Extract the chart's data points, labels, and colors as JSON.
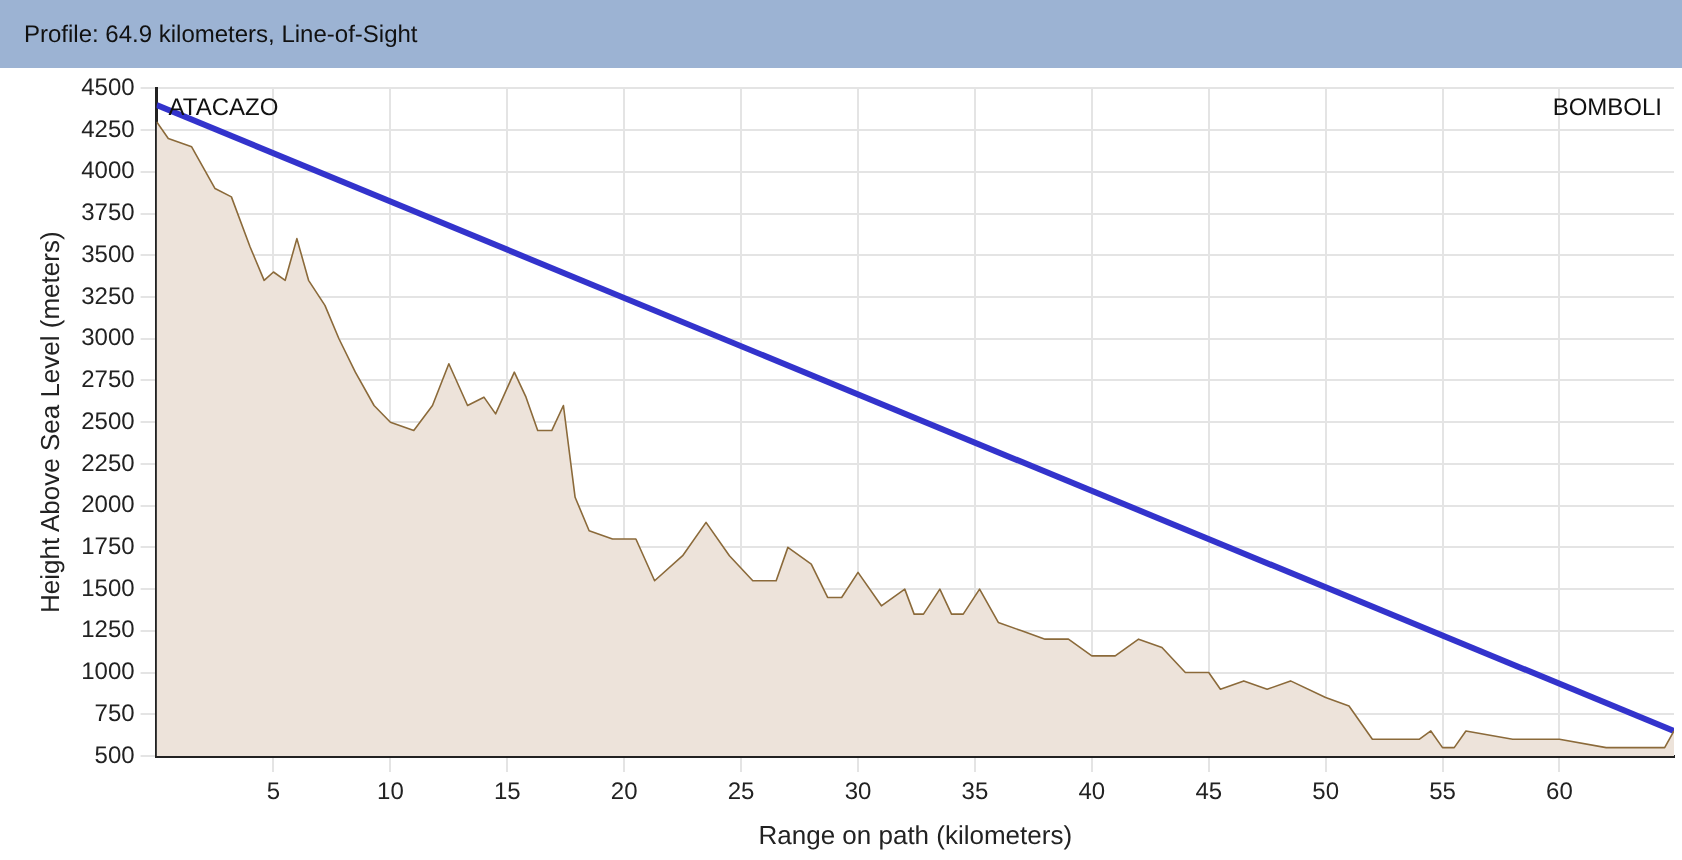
{
  "chart_data": {
    "type": "area",
    "title": "Profile: 64.9 kilometers, Line-of-Sight",
    "xlabel": "Range on path (kilometers)",
    "ylabel": "Height Above Sea Level (meters)",
    "xlim": [
      0,
      64.9
    ],
    "xticks": [
      5,
      10,
      15,
      20,
      25,
      30,
      35,
      40,
      45,
      50,
      55,
      60
    ],
    "ylim": [
      500,
      4500
    ],
    "yticks": [
      500,
      750,
      1000,
      1250,
      1500,
      1750,
      2000,
      2250,
      2500,
      2750,
      3000,
      3250,
      3500,
      3750,
      4000,
      4250,
      4500
    ],
    "grid": true,
    "legend": false,
    "annotations": [
      "ATACAZO",
      "BOMBOLI"
    ],
    "series": [
      {
        "color": "#8b6a3a",
        "x": [
          0,
          0.5,
          1.5,
          2.5,
          3.2,
          4,
          4.6,
          5,
          5.5,
          6,
          6.5,
          7.2,
          7.8,
          8.5,
          9.3,
          10,
          11,
          11.8,
          12.5,
          13.3,
          14,
          14.5,
          15.3,
          15.8,
          16.3,
          16.9,
          17.4,
          17.9,
          18.5,
          19.5,
          20.5,
          21.3,
          22.5,
          23.5,
          24.5,
          25.5,
          26.5,
          27,
          28,
          28.7,
          29.3,
          30,
          31,
          32,
          32.4,
          32.8,
          33.5,
          34,
          34.5,
          35.2,
          36,
          37,
          38,
          39,
          40,
          41,
          42,
          43,
          44,
          45,
          45.5,
          46.5,
          47.5,
          48.5,
          50,
          51,
          52,
          54,
          54.5,
          55,
          55.5,
          56,
          58,
          60,
          62,
          64.5,
          64.9
        ],
        "values": [
          4300,
          4200,
          4150,
          3900,
          3850,
          3550,
          3350,
          3400,
          3350,
          3600,
          3350,
          3200,
          3000,
          2800,
          2600,
          2500,
          2450,
          2600,
          2850,
          2600,
          2650,
          2550,
          2800,
          2650,
          2450,
          2450,
          2600,
          2050,
          1850,
          1800,
          1800,
          1550,
          1700,
          1900,
          1700,
          1550,
          1550,
          1750,
          1650,
          1450,
          1450,
          1600,
          1400,
          1500,
          1350,
          1350,
          1500,
          1350,
          1350,
          1500,
          1300,
          1250,
          1200,
          1200,
          1100,
          1100,
          1200,
          1150,
          1000,
          1000,
          900,
          950,
          900,
          950,
          850,
          800,
          600,
          600,
          650,
          550,
          550,
          650,
          600,
          600,
          550,
          550,
          650
        ]
      },
      {
        "type": "line",
        "color": "#3333cc",
        "x": [
          0,
          64.9
        ],
        "values": [
          4400,
          650
        ]
      }
    ]
  }
}
